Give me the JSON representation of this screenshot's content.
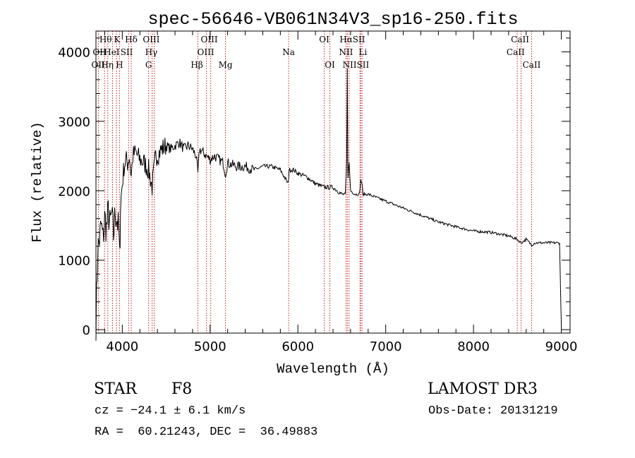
{
  "chart_data": {
    "type": "line",
    "title": "spec-56646-VB061N34V3_sp16-250.fits",
    "xlabel": "Wavelength (Å)",
    "ylabel": "Flux (relative)",
    "xlim": [
      3700,
      9100
    ],
    "ylim": [
      -50,
      4300
    ],
    "x_ticks": [
      4000,
      5000,
      6000,
      7000,
      8000,
      9000
    ],
    "x_tick_labels": [
      "4000",
      "5000",
      "6000",
      "7000",
      "8000",
      "9000"
    ],
    "y_ticks": [
      0,
      1000,
      2000,
      3000,
      4000
    ],
    "y_tick_labels": [
      "0",
      "1000",
      "2000",
      "3000",
      "4000"
    ],
    "grid": false,
    "series": [
      {
        "name": "flux",
        "x": [
          3700,
          3720,
          3740,
          3760,
          3780,
          3800,
          3820,
          3840,
          3860,
          3880,
          3900,
          3920,
          3940,
          3960,
          3970,
          3980,
          4000,
          4020,
          4040,
          4060,
          4080,
          4102,
          4120,
          4150,
          4200,
          4250,
          4300,
          4340,
          4380,
          4420,
          4450,
          4500,
          4550,
          4600,
          4650,
          4700,
          4750,
          4800,
          4840,
          4861,
          4880,
          4920,
          4960,
          5000,
          5050,
          5100,
          5150,
          5175,
          5200,
          5300,
          5400,
          5500,
          5600,
          5700,
          5800,
          5890,
          5900,
          5950,
          6000,
          6100,
          6200,
          6300,
          6400,
          6500,
          6540,
          6555,
          6563,
          6570,
          6584,
          6600,
          6650,
          6700,
          6716,
          6731,
          6740,
          6800,
          6900,
          7000,
          7200,
          7400,
          7600,
          7800,
          8000,
          8200,
          8400,
          8498,
          8542,
          8600,
          8662,
          8700,
          8800,
          8900,
          8980,
          9000
        ],
        "y": [
          100,
          1150,
          1300,
          1500,
          1300,
          1600,
          1450,
          1700,
          1500,
          1650,
          1350,
          1700,
          1600,
          1400,
          1000,
          1800,
          2100,
          2350,
          2450,
          2400,
          2500,
          2200,
          2500,
          2550,
          2450,
          2400,
          2300,
          2050,
          2500,
          2550,
          2600,
          2650,
          2600,
          2650,
          2700,
          2600,
          2650,
          2600,
          2500,
          2250,
          2600,
          2550,
          2500,
          2450,
          2500,
          2450,
          2400,
          2250,
          2400,
          2350,
          2350,
          2300,
          2350,
          2350,
          2300,
          2100,
          2300,
          2300,
          2250,
          2200,
          2100,
          2050,
          2050,
          1950,
          1950,
          2400,
          3750,
          2200,
          2400,
          2000,
          1950,
          1950,
          2150,
          2100,
          1950,
          1950,
          1900,
          1850,
          1750,
          1650,
          1550,
          1480,
          1420,
          1400,
          1350,
          1300,
          1250,
          1300,
          1220,
          1250,
          1250,
          1250,
          1250,
          50
        ]
      }
    ],
    "line_annotations": [
      {
        "name": "OII",
        "wavelength": 3727
      },
      {
        "name": "Hθ",
        "wavelength": 3798
      },
      {
        "name": "Hη",
        "wavelength": 3835
      },
      {
        "name": "HeI",
        "wavelength": 3889
      },
      {
        "name": "K",
        "wavelength": 3934
      },
      {
        "name": "H",
        "wavelength": 3968
      },
      {
        "name": "SII",
        "wavelength": 4072
      },
      {
        "name": "Hδ",
        "wavelength": 4102
      },
      {
        "name": "G",
        "wavelength": 4300
      },
      {
        "name": "Hγ",
        "wavelength": 4340
      },
      {
        "name": "OIII",
        "wavelength": 4363
      },
      {
        "name": "Hβ",
        "wavelength": 4861
      },
      {
        "name": "OIII",
        "wavelength": 4959
      },
      {
        "name": "OIII",
        "wavelength": 5007
      },
      {
        "name": "Mg",
        "wavelength": 5175
      },
      {
        "name": "Na",
        "wavelength": 5894
      },
      {
        "name": "OI",
        "wavelength": 6300
      },
      {
        "name": "OI",
        "wavelength": 6364
      },
      {
        "name": "NII",
        "wavelength": 6548
      },
      {
        "name": "Hα",
        "wavelength": 6563
      },
      {
        "name": "NII",
        "wavelength": 6583
      },
      {
        "name": "Li",
        "wavelength": 6707
      },
      {
        "name": "SII",
        "wavelength": 6716
      },
      {
        "name": "SII",
        "wavelength": 6731
      },
      {
        "name": "CaII",
        "wavelength": 8498
      },
      {
        "name": "CaII",
        "wavelength": 8542
      },
      {
        "name": "CaII",
        "wavelength": 8662
      }
    ],
    "line_label_rows": [
      [
        {
          "text": "Hθ",
          "at": 3810
        },
        {
          "text": "K",
          "at": 3940
        },
        {
          "text": "Hδ",
          "at": 4102
        },
        {
          "text": "OIII",
          "at": 4330
        },
        {
          "text": "OIII",
          "at": 4990
        },
        {
          "text": "OI",
          "at": 6300
        },
        {
          "text": "HαSII",
          "at": 6620
        },
        {
          "text": "CaII",
          "at": 8530
        }
      ],
      [
        {
          "text": "OII",
          "at": 3740
        },
        {
          "text": "HeI",
          "at": 3880
        },
        {
          "text": "SII",
          "at": 4050
        },
        {
          "text": "Hγ",
          "at": 4330
        },
        {
          "text": "OIII",
          "at": 4950
        },
        {
          "text": "Na",
          "at": 5894
        },
        {
          "text": "NII",
          "at": 6548
        },
        {
          "text": "Li",
          "at": 6740
        },
        {
          "text": "CaII",
          "at": 8480
        }
      ],
      [
        {
          "text": "OII",
          "at": 3725
        },
        {
          "text": "Hη",
          "at": 3830
        },
        {
          "text": "H",
          "at": 3968
        },
        {
          "text": "G",
          "at": 4300
        },
        {
          "text": "Hβ",
          "at": 4850
        },
        {
          "text": "Mg",
          "at": 5175
        },
        {
          "text": "OI",
          "at": 6364
        },
        {
          "text": "NIISII",
          "at": 6660
        },
        {
          "text": "CaII",
          "at": 8662
        }
      ]
    ]
  },
  "info": {
    "object_type": "STAR",
    "subclass": "F8",
    "survey": "LAMOST DR3",
    "redshift": "cz = −24.1 ± 6.1 km/s",
    "obs_date": "Obs-Date: 20131219",
    "coords": "RA =  60.21243, DEC =  36.49883"
  },
  "colors": {
    "line": "#000000",
    "annotation": "#c81e1e",
    "text": "#000000",
    "background": "#ffffff"
  }
}
